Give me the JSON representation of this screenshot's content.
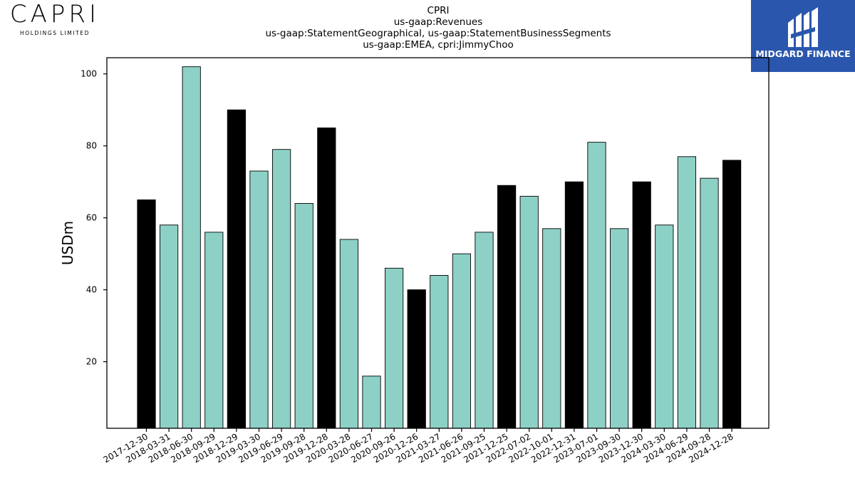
{
  "logos": {
    "company_word": "CAPRI",
    "company_sub": "HOLDINGS LIMITED",
    "publisher_name": "MIDGARD FINANCE",
    "publisher_bg": "#2b56ad"
  },
  "chart_data": {
    "type": "bar",
    "title_lines": [
      "CPRI",
      "us-gaap:Revenues",
      "us-gaap:StatementGeographical, us-gaap:StatementBusinessSegments",
      "us-gaap:EMEA, cpri:JimmyChoo"
    ],
    "xlabel": "",
    "ylabel": "USDm",
    "ylim": [
      1.5,
      104.5
    ],
    "yticks": [
      20,
      40,
      60,
      80,
      100
    ],
    "grid": false,
    "colors": {
      "quarter": "#8dd1c6",
      "fiscal_year_end": "#000000",
      "edge": "#000000"
    },
    "categories": [
      "2017-12-30",
      "2018-03-31",
      "2018-06-30",
      "2018-09-29",
      "2018-12-29",
      "2019-03-30",
      "2019-06-29",
      "2019-09-28",
      "2019-12-28",
      "2020-03-28",
      "2020-06-27",
      "2020-09-26",
      "2020-12-26",
      "2021-03-27",
      "2021-06-26",
      "2021-09-25",
      "2021-12-25",
      "2022-07-02",
      "2022-10-01",
      "2022-12-31",
      "2023-07-01",
      "2023-09-30",
      "2023-12-30",
      "2024-03-30",
      "2024-06-29",
      "2024-09-28",
      "2024-12-28"
    ],
    "values": [
      65,
      58,
      102,
      56,
      90,
      73,
      79,
      64,
      85,
      54,
      16,
      46,
      40,
      44,
      50,
      56,
      69,
      66,
      57,
      70,
      81,
      57,
      70,
      58,
      77,
      71,
      76
    ],
    "highlight": [
      true,
      false,
      false,
      false,
      true,
      false,
      false,
      false,
      true,
      false,
      false,
      false,
      true,
      false,
      false,
      false,
      true,
      false,
      false,
      true,
      false,
      false,
      true,
      false,
      false,
      false,
      true
    ]
  }
}
